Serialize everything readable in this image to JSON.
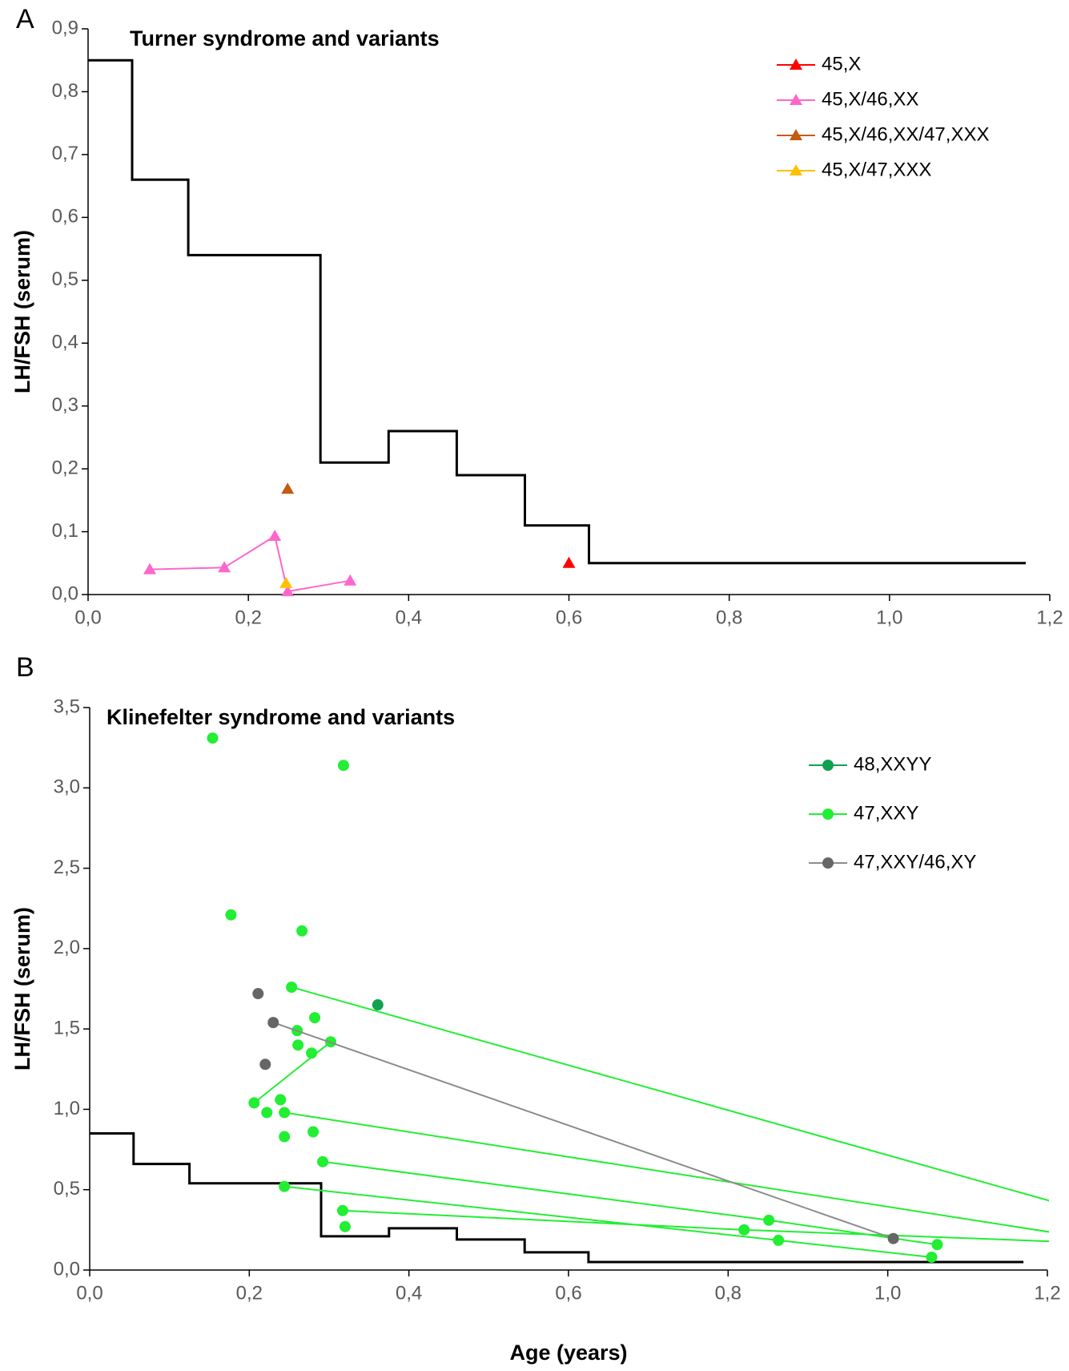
{
  "chart_data": [
    {
      "type": "scatter",
      "panel": "A",
      "title": "Turner syndrome and variants",
      "ylabel": "LH/FSH (serum)",
      "xlim": [
        0,
        1.2
      ],
      "ylim": [
        0,
        0.9
      ],
      "legend": "upper right",
      "grid": false,
      "xticks": [
        {
          "value": 0,
          "label": "0,0"
        },
        {
          "value": 0.2,
          "label": "0,2"
        },
        {
          "value": 0.4,
          "label": "0,4"
        },
        {
          "value": 0.6,
          "label": "0,6"
        },
        {
          "value": 0.8,
          "label": "0,8"
        },
        {
          "value": 1.0,
          "label": "1,0"
        },
        {
          "value": 1.2,
          "label": "1,2"
        }
      ],
      "yticks": [
        {
          "value": 0,
          "label": "0,0"
        },
        {
          "value": 0.1,
          "label": "0,1"
        },
        {
          "value": 0.2,
          "label": "0,2"
        },
        {
          "value": 0.3,
          "label": "0,3"
        },
        {
          "value": 0.4,
          "label": "0,4"
        },
        {
          "value": 0.5,
          "label": "0,5"
        },
        {
          "value": 0.6,
          "label": "0,6"
        },
        {
          "value": 0.7,
          "label": "0,7"
        },
        {
          "value": 0.8,
          "label": "0,8"
        },
        {
          "value": 0.9,
          "label": "0,9"
        }
      ],
      "reference": {
        "color": "#000000",
        "x": [
          0,
          0.055,
          0.055,
          0.125,
          0.125,
          0.29,
          0.29,
          0.375,
          0.375,
          0.46,
          0.46,
          0.545,
          0.545,
          0.625,
          0.625,
          1.17
        ],
        "values": [
          0.85,
          0.85,
          0.66,
          0.66,
          0.54,
          0.54,
          0.21,
          0.21,
          0.26,
          0.26,
          0.19,
          0.19,
          0.11,
          0.11,
          0.05,
          0.05
        ]
      },
      "series": [
        {
          "name": "45,X",
          "color": "#ff0000",
          "marker": "triangle",
          "x": [
            0.6
          ],
          "values": [
            0.05
          ]
        },
        {
          "name": "45,X/46,XX",
          "color": "#ff66cc",
          "marker": "triangle",
          "x": [
            0.077,
            0.17,
            0.233,
            0.249,
            0.327
          ],
          "values": [
            0.04,
            0.043,
            0.093,
            0.005,
            0.022
          ]
        },
        {
          "name": "45,X/46,XX/47,XXX",
          "color": "#c55a11",
          "marker": "triangle",
          "x": [
            0.249
          ],
          "values": [
            0.168
          ]
        },
        {
          "name": "45,X/47,XXX",
          "color": "#ffc000",
          "marker": "triangle",
          "x": [
            0.247
          ],
          "values": [
            0.018
          ]
        }
      ]
    },
    {
      "type": "scatter",
      "panel": "B",
      "title": "Klinefelter syndrome and variants",
      "ylabel": "LH/FSH (serum)",
      "xlabel": "Age (years)",
      "xlim": [
        0,
        1.2
      ],
      "ylim": [
        0,
        3.5
      ],
      "legend": "upper right",
      "grid": false,
      "xticks": [
        {
          "value": 0,
          "label": "0,0"
        },
        {
          "value": 0.2,
          "label": "0,2"
        },
        {
          "value": 0.4,
          "label": "0,4"
        },
        {
          "value": 0.6,
          "label": "0,6"
        },
        {
          "value": 0.8,
          "label": "0,8"
        },
        {
          "value": 1.0,
          "label": "1,0"
        },
        {
          "value": 1.2,
          "label": "1,2"
        }
      ],
      "yticks": [
        {
          "value": 0,
          "label": "0,0"
        },
        {
          "value": 0.5,
          "label": "0,5"
        },
        {
          "value": 1.0,
          "label": "1,0"
        },
        {
          "value": 1.5,
          "label": "1,5"
        },
        {
          "value": 2.0,
          "label": "2,0"
        },
        {
          "value": 2.5,
          "label": "2,5"
        },
        {
          "value": 3.0,
          "label": "3,0"
        },
        {
          "value": 3.5,
          "label": "3,5"
        }
      ],
      "reference": {
        "color": "#000000",
        "x": [
          0,
          0.055,
          0.055,
          0.125,
          0.125,
          0.29,
          0.29,
          0.375,
          0.375,
          0.46,
          0.46,
          0.545,
          0.545,
          0.625,
          0.625,
          1.17
        ],
        "values": [
          0.85,
          0.85,
          0.66,
          0.66,
          0.54,
          0.54,
          0.21,
          0.21,
          0.26,
          0.26,
          0.19,
          0.19,
          0.11,
          0.11,
          0.05,
          0.05
        ]
      },
      "series": [
        {
          "name": "48,XXYY",
          "color": "#13a050",
          "marker": "circle",
          "x": [
            0.361
          ],
          "values": [
            1.65
          ]
        },
        {
          "name": "47,XXY",
          "color": "#22ee33",
          "marker": "circle",
          "x": [
            0.253,
            1.25,
            null,
            0.244,
            1.25,
            null,
            0.292,
            0.851,
            1.062,
            null,
            0.244,
            0.863,
            1.055,
            null,
            0.317,
            0.82,
            1.25,
            null,
            0.206,
            0.302,
            null,
            0.154,
            null,
            0.318,
            null,
            0.177,
            null,
            0.266,
            null,
            0.282,
            null,
            0.26,
            null,
            0.261,
            null,
            0.278,
            null,
            0.239,
            null,
            0.222,
            null,
            0.244,
            null,
            0.28,
            null,
            0.32
          ],
          "values": [
            1.76,
            0.365,
            null,
            0.98,
            0.2,
            null,
            0.674,
            0.31,
            0.158,
            null,
            0.52,
            0.185,
            0.08,
            null,
            0.37,
            0.25,
            0.17,
            null,
            1.04,
            1.42,
            null,
            3.31,
            null,
            3.14,
            null,
            2.21,
            null,
            2.11,
            null,
            1.57,
            null,
            1.49,
            null,
            1.4,
            null,
            1.35,
            null,
            1.06,
            null,
            0.98,
            null,
            0.83,
            null,
            0.86,
            null,
            0.27
          ]
        },
        {
          "name": "47,XXY/46,XY",
          "color": "#8c8c8c",
          "marker_color": "#666666",
          "marker": "circle",
          "x": [
            0.211,
            null,
            0.22,
            null,
            0.23,
            1.007
          ],
          "values": [
            1.72,
            null,
            1.28,
            null,
            1.54,
            0.196
          ]
        }
      ]
    }
  ]
}
